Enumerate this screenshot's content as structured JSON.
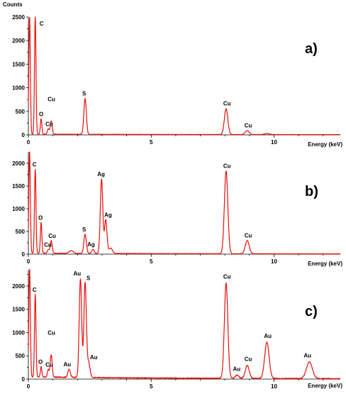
{
  "chart_data": [
    {
      "type": "line",
      "title": "a)",
      "ylabel": "Counts",
      "xlabel": "Energy (keV)",
      "xlim": [
        0,
        12.7
      ],
      "ylim": [
        0,
        2500
      ],
      "xticks": [
        "0",
        "5",
        "10"
      ],
      "yticks": [
        "0",
        "500",
        "1000",
        "1500",
        "2000",
        "2500"
      ],
      "color": "#e8100a",
      "peaks": [
        {
          "x": 0.05,
          "y": 2500,
          "w": 0.03,
          "label": ""
        },
        {
          "x": 0.28,
          "y": 2500,
          "w": 0.03,
          "label": "C"
        },
        {
          "x": 0.52,
          "y": 330,
          "w": 0.03,
          "label": "O"
        },
        {
          "x": 0.81,
          "y": 115,
          "w": 0.035,
          "label": "Cu"
        },
        {
          "x": 0.93,
          "y": 280,
          "w": 0.04,
          "label": "Cu"
        },
        {
          "x": 2.31,
          "y": 760,
          "w": 0.05,
          "label": "S"
        },
        {
          "x": 8.05,
          "y": 550,
          "w": 0.07,
          "label": "Cu"
        },
        {
          "x": 8.91,
          "y": 85,
          "w": 0.08,
          "label": "Cu"
        },
        {
          "x": 9.71,
          "y": 20,
          "w": 0.1,
          "label": ""
        }
      ],
      "baseline": 12
    },
    {
      "type": "line",
      "title": "b)",
      "ylabel": "",
      "xlabel": "Energy (keV)",
      "xlim": [
        0,
        12.7
      ],
      "ylim": [
        0,
        2250
      ],
      "xticks": [
        "0",
        "5",
        "10"
      ],
      "yticks": [
        "0",
        "500",
        "1000",
        "1500",
        "2000"
      ],
      "color": "#e8100a",
      "peaks": [
        {
          "x": 0.05,
          "y": 2250,
          "w": 0.03,
          "label": ""
        },
        {
          "x": 0.28,
          "y": 1850,
          "w": 0.03,
          "label": "C"
        },
        {
          "x": 0.52,
          "y": 680,
          "w": 0.03,
          "label": "O"
        },
        {
          "x": 0.81,
          "y": 80,
          "w": 0.035,
          "label": "Cu"
        },
        {
          "x": 0.93,
          "y": 280,
          "w": 0.04,
          "label": "Cu"
        },
        {
          "x": 1.74,
          "y": 60,
          "w": 0.08,
          "label": ""
        },
        {
          "x": 2.31,
          "y": 420,
          "w": 0.05,
          "label": "S"
        },
        {
          "x": 2.63,
          "y": 90,
          "w": 0.05,
          "label": "Ag"
        },
        {
          "x": 2.98,
          "y": 1640,
          "w": 0.05,
          "label": "Ag"
        },
        {
          "x": 3.15,
          "y": 740,
          "w": 0.05,
          "label": "Ag"
        },
        {
          "x": 3.35,
          "y": 120,
          "w": 0.07,
          "label": ""
        },
        {
          "x": 8.05,
          "y": 1820,
          "w": 0.07,
          "label": "Cu"
        },
        {
          "x": 8.91,
          "y": 290,
          "w": 0.08,
          "label": "Cu"
        }
      ],
      "baseline": 18
    },
    {
      "type": "line",
      "title": "c)",
      "ylabel": "",
      "xlabel": "Energy (keV)",
      "xlim": [
        0,
        12.7
      ],
      "ylim": [
        0,
        2350
      ],
      "xticks": [
        "0",
        "5",
        "10"
      ],
      "yticks": [
        "0",
        "500",
        "1000",
        "1500",
        "2000"
      ],
      "color": "#e8100a",
      "peaks": [
        {
          "x": 0.05,
          "y": 2350,
          "w": 0.03,
          "label": ""
        },
        {
          "x": 0.28,
          "y": 1770,
          "w": 0.03,
          "label": "C"
        },
        {
          "x": 0.52,
          "y": 220,
          "w": 0.03,
          "label": "O"
        },
        {
          "x": 0.81,
          "y": 160,
          "w": 0.035,
          "label": "Cu"
        },
        {
          "x": 0.93,
          "y": 480,
          "w": 0.04,
          "label": "Cu"
        },
        {
          "x": 1.66,
          "y": 170,
          "w": 0.05,
          "label": "Au"
        },
        {
          "x": 2.12,
          "y": 2120,
          "w": 0.05,
          "label": "Au"
        },
        {
          "x": 2.31,
          "y": 2020,
          "w": 0.05,
          "label": "S"
        },
        {
          "x": 2.45,
          "y": 320,
          "w": 0.06,
          "label": "Au"
        },
        {
          "x": 8.05,
          "y": 2050,
          "w": 0.07,
          "label": "Cu"
        },
        {
          "x": 8.5,
          "y": 70,
          "w": 0.07,
          "label": "Au"
        },
        {
          "x": 8.91,
          "y": 280,
          "w": 0.08,
          "label": "Cu"
        },
        {
          "x": 9.71,
          "y": 780,
          "w": 0.09,
          "label": "Au"
        },
        {
          "x": 11.44,
          "y": 360,
          "w": 0.12,
          "label": "Au"
        }
      ],
      "baseline": 45
    }
  ]
}
